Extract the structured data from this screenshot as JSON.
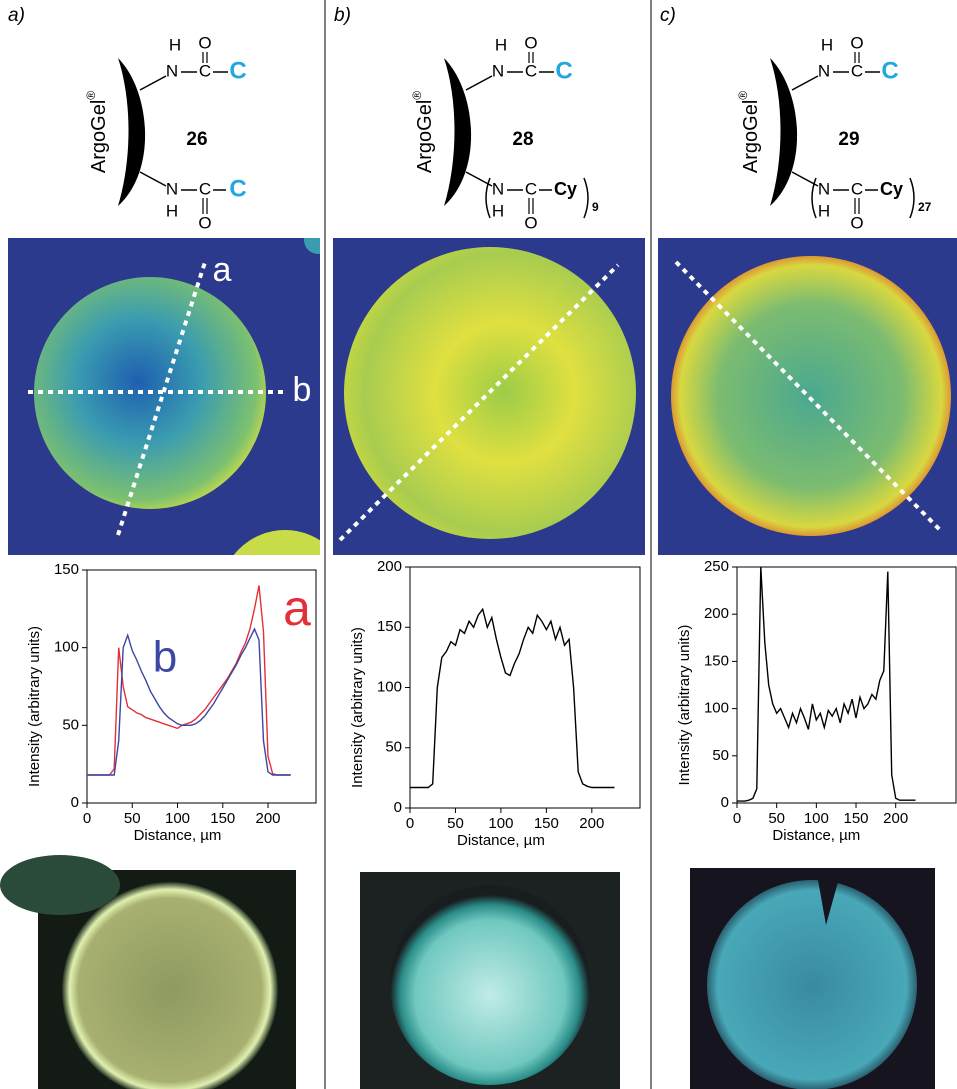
{
  "panels": [
    {
      "label": "a)",
      "structure": {
        "support": "ArgoGel",
        "mark": "®",
        "number": "26",
        "top": {
          "H": "H",
          "N": "N",
          "C": "C",
          "O": "O",
          "end": "C"
        },
        "bottom": {
          "N": "N",
          "H": "H",
          "C": "C",
          "O": "O",
          "end": "C"
        }
      },
      "line_labels": [
        "a",
        "b"
      ]
    },
    {
      "label": "b)",
      "structure": {
        "support": "ArgoGel",
        "mark": "®",
        "number": "28",
        "top": {
          "H": "H",
          "N": "N",
          "C": "C",
          "O": "O",
          "end": "C"
        },
        "bottom": {
          "N": "N",
          "H": "H",
          "C": "C",
          "O": "O",
          "end": "Cy",
          "repeat": "9"
        }
      }
    },
    {
      "label": "c)",
      "structure": {
        "support": "ArgoGel",
        "mark": "®",
        "number": "29",
        "top": {
          "H": "H",
          "N": "N",
          "C": "C",
          "O": "O",
          "end": "C"
        },
        "bottom": {
          "N": "N",
          "H": "H",
          "C": "C",
          "O": "O",
          "end": "Cy",
          "repeat": "27"
        }
      }
    }
  ],
  "chart_data": [
    {
      "type": "line",
      "xlabel": "Distance, µm",
      "ylabel": "Intensity (arbitrary units)",
      "xlim": [
        0,
        253
      ],
      "ylim": [
        0,
        150
      ],
      "xticks": [
        0,
        50,
        100,
        150,
        200
      ],
      "yticks": [
        0,
        50,
        100,
        150
      ],
      "x": [
        0,
        5,
        10,
        15,
        20,
        25,
        30,
        35,
        40,
        45,
        50,
        55,
        60,
        65,
        70,
        75,
        80,
        85,
        90,
        95,
        100,
        105,
        110,
        115,
        120,
        125,
        130,
        135,
        140,
        145,
        150,
        155,
        160,
        165,
        170,
        175,
        180,
        185,
        190,
        195,
        200,
        205,
        210,
        215,
        220,
        225
      ],
      "series": [
        {
          "name": "a",
          "color": "#e2303a",
          "values": [
            18,
            18,
            18,
            18,
            18,
            18,
            22,
            100,
            75,
            62,
            60,
            58,
            57,
            55,
            54,
            53,
            52,
            51,
            50,
            49,
            48,
            50,
            51,
            52,
            54,
            57,
            60,
            64,
            68,
            72,
            76,
            80,
            85,
            90,
            97,
            103,
            112,
            125,
            140,
            110,
            30,
            19,
            18,
            18,
            18,
            18
          ]
        },
        {
          "name": "b",
          "color": "#3a47a3",
          "values": [
            18,
            18,
            18,
            18,
            18,
            18,
            18,
            40,
            100,
            108,
            98,
            92,
            85,
            79,
            72,
            67,
            62,
            58,
            55,
            53,
            51,
            50,
            50,
            50,
            51,
            53,
            56,
            60,
            64,
            69,
            74,
            79,
            84,
            89,
            95,
            100,
            106,
            112,
            105,
            40,
            20,
            18,
            18,
            18,
            18,
            18
          ]
        }
      ]
    },
    {
      "type": "line",
      "xlabel": "Distance, µm",
      "ylabel": "Intensity (arbitrary units)",
      "xlim": [
        0,
        253
      ],
      "ylim": [
        0,
        200
      ],
      "xticks": [
        0,
        50,
        100,
        150,
        200
      ],
      "yticks": [
        0,
        50,
        100,
        150,
        200
      ],
      "x": [
        0,
        5,
        10,
        15,
        20,
        25,
        30,
        35,
        40,
        45,
        50,
        55,
        60,
        65,
        70,
        75,
        80,
        85,
        90,
        95,
        100,
        105,
        110,
        115,
        120,
        125,
        130,
        135,
        140,
        145,
        150,
        155,
        160,
        165,
        170,
        175,
        180,
        185,
        190,
        195,
        200,
        205,
        210,
        215,
        220,
        225
      ],
      "series": [
        {
          "color": "#000000",
          "values": [
            17,
            17,
            17,
            17,
            17,
            20,
            100,
            125,
            130,
            138,
            135,
            148,
            145,
            155,
            150,
            160,
            165,
            150,
            158,
            140,
            125,
            112,
            110,
            120,
            128,
            140,
            150,
            145,
            160,
            155,
            148,
            155,
            140,
            150,
            135,
            140,
            100,
            30,
            20,
            18,
            17,
            17,
            17,
            17,
            17,
            17
          ]
        }
      ]
    },
    {
      "type": "line",
      "xlabel": "Distance, µm",
      "ylabel": "Intensity (arbitrary units)",
      "xlim": [
        0,
        276
      ],
      "ylim": [
        0,
        250
      ],
      "xticks": [
        0,
        50,
        100,
        150,
        200
      ],
      "yticks": [
        0,
        50,
        100,
        150,
        200,
        250
      ],
      "x": [
        0,
        5,
        10,
        15,
        20,
        25,
        30,
        35,
        40,
        45,
        50,
        55,
        60,
        65,
        70,
        75,
        80,
        85,
        90,
        95,
        100,
        105,
        110,
        115,
        120,
        125,
        130,
        135,
        140,
        145,
        150,
        155,
        160,
        165,
        170,
        175,
        180,
        185,
        190,
        195,
        200,
        205,
        210,
        215,
        220,
        225
      ],
      "series": [
        {
          "color": "#000000",
          "values": [
            2,
            2,
            2,
            3,
            5,
            15,
            250,
            170,
            125,
            105,
            95,
            100,
            90,
            80,
            95,
            85,
            100,
            90,
            78,
            105,
            88,
            95,
            80,
            98,
            92,
            100,
            85,
            105,
            95,
            110,
            90,
            112,
            100,
            105,
            115,
            110,
            130,
            140,
            245,
            30,
            5,
            3,
            3,
            3,
            3,
            3
          ]
        }
      ]
    }
  ]
}
